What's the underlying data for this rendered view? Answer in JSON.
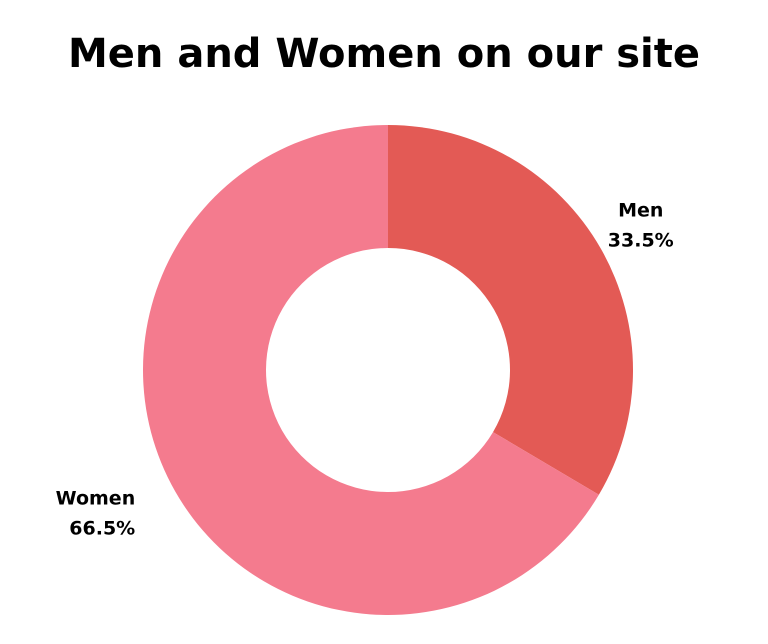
{
  "chart_data": {
    "type": "donut",
    "title": "Men and Women on our site",
    "categories": [
      "Men",
      "Women"
    ],
    "values": [
      33.5,
      66.5
    ],
    "value_labels": [
      "33.5%",
      "66.5%"
    ],
    "colors": [
      "#e35a55",
      "#f47b8e"
    ]
  }
}
